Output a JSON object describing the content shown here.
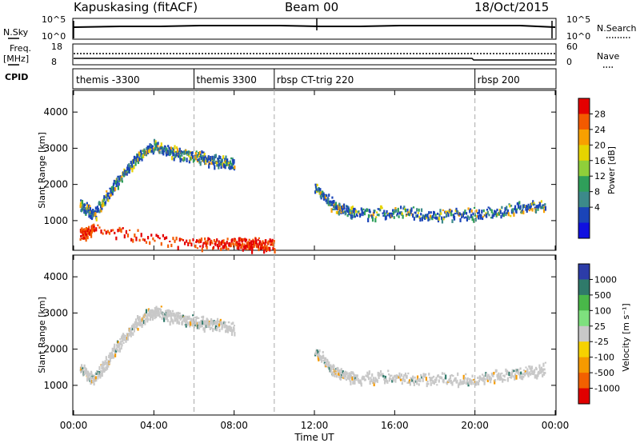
{
  "header": {
    "station": "Kapuskasing (fitACF)",
    "beam": "Beam 00",
    "date": "18/Oct/2015"
  },
  "status_panels": {
    "nsky_label": "N.Sky",
    "nsky_ticks": [
      "10^5",
      "10^0"
    ],
    "nsearch_label": "N.Search",
    "nsearch_ticks": [
      "10^5",
      "10^0"
    ],
    "freq_label_top": "Freq.",
    "freq_label_unit": "[MHz]",
    "freq_ticks": [
      "18",
      "8"
    ],
    "nave_label": "Nave",
    "nave_ticks": [
      "60",
      "0"
    ],
    "cpid_label": "CPID"
  },
  "cpid_segments": [
    {
      "label": "themis -3300",
      "start_hour": 0
    },
    {
      "label": "themis 3300",
      "start_hour": 6
    },
    {
      "label": "rbsp CT-trig 220",
      "start_hour": 10
    },
    {
      "label": "rbsp 200",
      "start_hour": 20
    }
  ],
  "axes": {
    "ylabel": "Slant Range [km]",
    "xlabel": "Time UT",
    "x_ticks": [
      "00:00",
      "04:00",
      "08:00",
      "12:00",
      "16:00",
      "20:00",
      "00:00"
    ],
    "y_ticks": [
      "1000",
      "2000",
      "3000",
      "4000"
    ]
  },
  "colorbars": {
    "power": {
      "label": "Power [dB]",
      "ticks": [
        "28",
        "24",
        "20",
        "16",
        "12",
        "8",
        "4"
      ],
      "colors": [
        "#e40000",
        "#f35a00",
        "#f8a000",
        "#e6d400",
        "#8fcf3a",
        "#2f9f5a",
        "#3c8a8a",
        "#1a44b8",
        "#1010e0"
      ]
    },
    "velocity": {
      "label": "Velocity [m s⁻¹]",
      "ticks": [
        "1000",
        "500",
        "100",
        "25",
        "-25",
        "-100",
        "-500",
        "-1000"
      ],
      "colors": [
        "#2c3ca8",
        "#2f7a6a",
        "#49b849",
        "#7ee07e",
        "#c8c8c8",
        "#f6d200",
        "#f59a00",
        "#f26000",
        "#e00000"
      ]
    }
  },
  "chart_data": [
    {
      "type": "heatmap",
      "title": "Power",
      "xlabel": "Time UT",
      "ylabel": "Slant Range [km]",
      "xlim": [
        0,
        24
      ],
      "ylim": [
        180,
        4600
      ],
      "series": [
        {
          "name": "Power",
          "x": [
            0.3,
            1.0,
            2.0,
            3.0,
            4.0,
            5.0,
            6.0,
            7.0,
            8.0
          ],
          "y": [
            1500,
            1200,
            2000,
            2700,
            3100,
            2900,
            2800,
            2700,
            2600
          ]
        },
        {
          "name": "Power",
          "x": [
            12.0,
            13.0,
            14.0,
            16.0,
            18.0,
            20.0,
            22.0,
            23.5
          ],
          "y": [
            2000,
            1400,
            1250,
            1250,
            1200,
            1200,
            1350,
            1500
          ]
        },
        {
          "name": "Power",
          "x": [
            0.3,
            1.0,
            6.0,
            8.0,
            9.0,
            10.0
          ],
          "y": [
            650,
            800,
            400,
            400,
            380,
            350
          ]
        }
      ]
    },
    {
      "type": "heatmap",
      "title": "Velocity",
      "xlabel": "Time UT",
      "ylabel": "Slant Range [km]",
      "xlim": [
        0,
        24
      ],
      "ylim": [
        180,
        4600
      ],
      "series": [
        {
          "name": "Velocity",
          "x": [
            0.3,
            1.0,
            2.0,
            3.0,
            4.0,
            5.0,
            6.0,
            7.0,
            8.0
          ],
          "y": [
            1500,
            1200,
            2000,
            2700,
            3100,
            2900,
            2800,
            2700,
            2600
          ]
        },
        {
          "name": "Velocity",
          "x": [
            12.0,
            13.0,
            14.0,
            16.0,
            18.0,
            20.0,
            22.0,
            23.5
          ],
          "y": [
            2000,
            1400,
            1250,
            1250,
            1200,
            1200,
            1350,
            1500
          ]
        }
      ]
    }
  ]
}
